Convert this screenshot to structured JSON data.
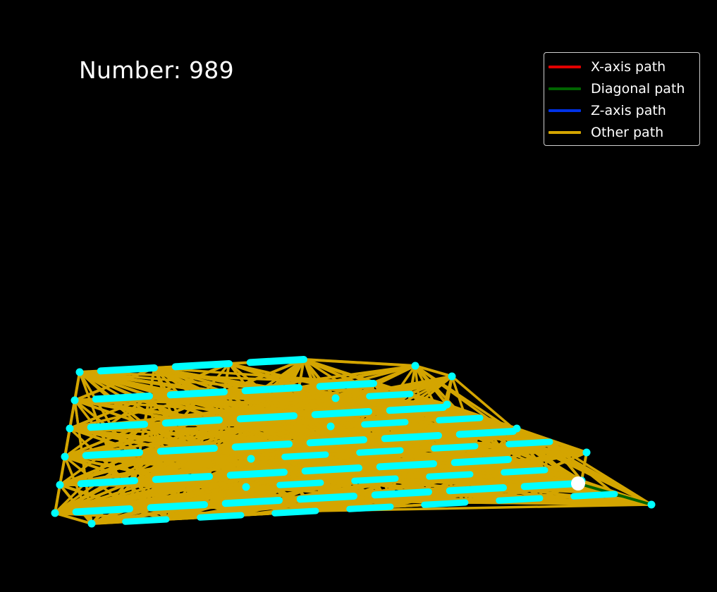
{
  "counter": {
    "prefix": "Number: ",
    "value": "989"
  },
  "legend": {
    "placement": "top-right",
    "entries": [
      {
        "label": "X-axis path",
        "color": "#e00000"
      },
      {
        "label": "Diagonal path",
        "color": "#006400"
      },
      {
        "label": "Z-axis path",
        "color": "#0032e6"
      },
      {
        "label": "Other path",
        "color": "#d4a500"
      }
    ]
  },
  "chart_data": {
    "type": "network",
    "projection": "3d",
    "grid": false,
    "axes_visible": false,
    "background": "#000000",
    "node_color": "#00ffff",
    "current_node_color": "#ffffff",
    "grid_size": [
      8,
      6,
      5
    ],
    "current_node": [
      7,
      0,
      0
    ],
    "diagonal_path": [
      [
        7,
        0,
        0
      ],
      [
        7,
        0,
        1
      ],
      [
        7,
        0,
        2
      ]
    ],
    "nodes": [
      [
        0,
        0,
        0
      ],
      [
        1,
        0,
        0
      ],
      [
        2,
        0,
        0
      ],
      [
        3,
        0,
        0
      ],
      [
        4,
        0,
        0
      ],
      [
        5,
        0,
        0
      ],
      [
        6,
        0,
        0
      ],
      [
        7,
        0,
        0
      ],
      [
        0,
        1,
        0
      ],
      [
        1,
        1,
        0
      ],
      [
        2,
        1,
        0
      ],
      [
        3,
        1,
        0
      ],
      [
        4,
        1,
        0
      ],
      [
        5,
        1,
        0
      ],
      [
        6,
        1,
        0
      ],
      [
        0,
        2,
        0
      ],
      [
        1,
        2,
        0
      ],
      [
        2,
        2,
        0
      ],
      [
        3,
        2,
        0
      ],
      [
        4,
        2,
        0
      ],
      [
        5,
        2,
        0
      ],
      [
        6,
        2,
        0
      ],
      [
        0,
        3,
        0
      ],
      [
        1,
        3,
        0
      ],
      [
        2,
        3,
        0
      ],
      [
        3,
        3,
        0
      ],
      [
        4,
        3,
        0
      ],
      [
        5,
        3,
        0
      ],
      [
        0,
        4,
        0
      ],
      [
        1,
        4,
        0
      ],
      [
        2,
        4,
        0
      ],
      [
        3,
        4,
        0
      ],
      [
        4,
        4,
        0
      ],
      [
        0,
        5,
        0
      ],
      [
        1,
        5,
        0
      ],
      [
        2,
        5,
        0
      ],
      [
        3,
        5,
        0
      ],
      [
        0,
        0,
        1
      ],
      [
        1,
        0,
        1
      ],
      [
        2,
        0,
        1
      ],
      [
        3,
        0,
        1
      ],
      [
        4,
        0,
        1
      ],
      [
        5,
        0,
        1
      ],
      [
        6,
        0,
        1
      ],
      [
        7,
        0,
        1
      ],
      [
        2,
        1,
        1
      ],
      [
        3,
        1,
        1
      ],
      [
        4,
        1,
        1
      ],
      [
        5,
        1,
        1
      ],
      [
        6,
        1,
        1
      ],
      [
        2,
        2,
        1
      ],
      [
        3,
        2,
        1
      ],
      [
        4,
        2,
        1
      ],
      [
        5,
        2,
        1
      ],
      [
        6,
        2,
        1
      ],
      [
        3,
        3,
        1
      ],
      [
        4,
        3,
        1
      ],
      [
        5,
        3,
        1
      ],
      [
        3,
        4,
        1
      ],
      [
        4,
        4,
        1
      ],
      [
        4,
        5,
        1
      ],
      [
        7,
        0,
        2
      ],
      [
        6,
        1,
        2
      ],
      [
        6,
        2,
        2
      ],
      [
        5,
        3,
        2
      ],
      [
        4,
        4,
        2
      ],
      [
        4,
        5,
        2
      ]
    ]
  }
}
